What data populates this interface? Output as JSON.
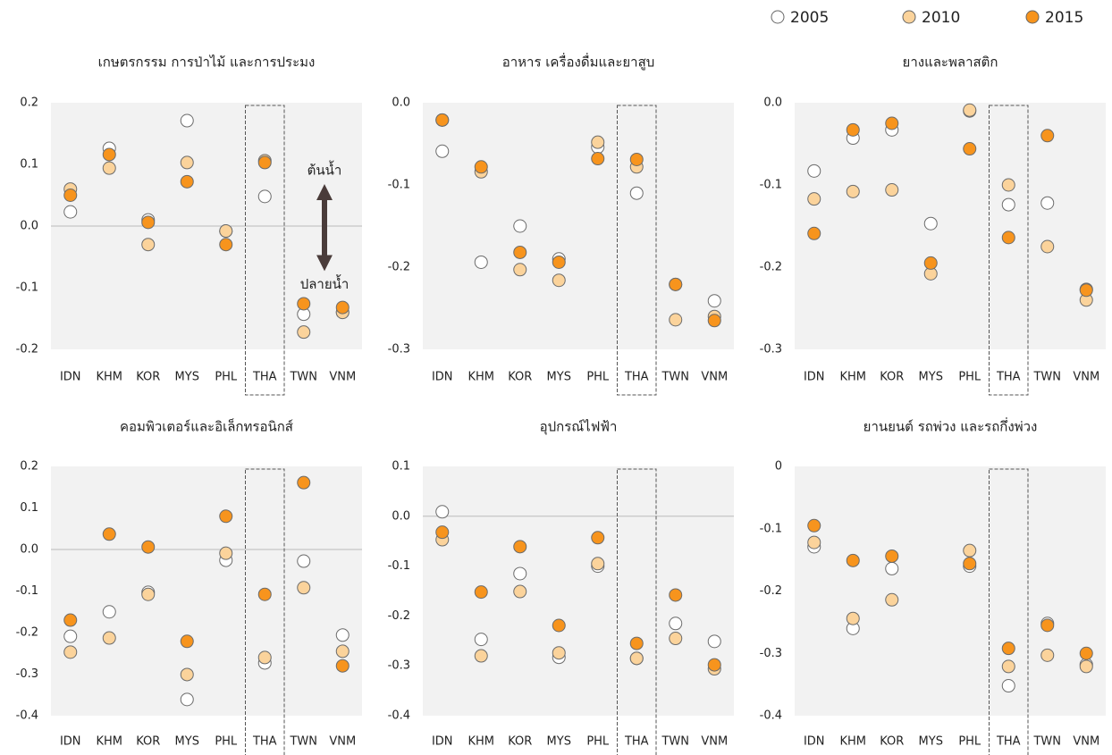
{
  "chart_data": [
    {
      "type": "dot",
      "title": "เกษตรกรรม การป่าไม้ และการประมง",
      "categories": [
        "IDN",
        "KHM",
        "KOR",
        "MYS",
        "PHL",
        "THA",
        "TWN",
        "VNM"
      ],
      "ylim": [
        -0.2,
        0.2
      ],
      "yticks": [
        -0.2,
        -0.1,
        {
          "value": 0,
          "label": "0.0"
        },
        0.1,
        0.2
      ],
      "highlight": "THA",
      "annotations": [
        "ต้นน้ำ",
        "ปลายน้ำ"
      ],
      "series": [
        {
          "name": "2005",
          "color": "#ffffff",
          "values": [
            0.023,
            0.126,
            0.01,
            0.171,
            -0.008,
            0.048,
            -0.143,
            -0.14
          ]
        },
        {
          "name": "2010",
          "color": "#fbd39b",
          "values": [
            0.06,
            0.094,
            -0.03,
            0.103,
            -0.008,
            0.106,
            -0.172,
            -0.14
          ]
        },
        {
          "name": "2015",
          "color": "#f7941d",
          "values": [
            0.05,
            0.116,
            0.006,
            0.072,
            -0.03,
            0.103,
            -0.126,
            -0.132
          ]
        }
      ]
    },
    {
      "type": "dot",
      "title": "อาหาร เครื่องดื่มและยาสูบ",
      "categories": [
        "IDN",
        "KHM",
        "KOR",
        "MYS",
        "PHL",
        "THA",
        "TWN",
        "VNM"
      ],
      "ylim": [
        -0.3,
        0
      ],
      "yticks": [
        -0.3,
        -0.2,
        -0.1,
        {
          "value": 0,
          "label": "0.0"
        }
      ],
      "highlight": "THA",
      "series": [
        {
          "name": "2005",
          "color": "#ffffff",
          "values": [
            -0.059,
            -0.194,
            -0.15,
            -0.19,
            -0.054,
            -0.11,
            -0.221,
            -0.241
          ]
        },
        {
          "name": "2010",
          "color": "#fbd39b",
          "values": [
            -0.021,
            -0.084,
            -0.203,
            -0.216,
            -0.048,
            -0.078,
            -0.264,
            -0.26
          ]
        },
        {
          "name": "2015",
          "color": "#f7941d",
          "values": [
            -0.021,
            -0.078,
            -0.182,
            -0.194,
            -0.068,
            -0.069,
            -0.221,
            -0.265
          ]
        }
      ]
    },
    {
      "type": "dot",
      "title": "ยางและพลาสติก",
      "categories": [
        "IDN",
        "KHM",
        "KOR",
        "MYS",
        "PHL",
        "THA",
        "TWN",
        "VNM"
      ],
      "ylim": [
        -0.3,
        0
      ],
      "yticks": [
        -0.3,
        -0.2,
        -0.1,
        {
          "value": 0,
          "label": "0.0"
        }
      ],
      "highlight": "THA",
      "series": [
        {
          "name": "2005",
          "color": "#ffffff",
          "values": [
            -0.083,
            -0.043,
            -0.033,
            -0.147,
            -0.01,
            -0.124,
            -0.122,
            -0.227
          ]
        },
        {
          "name": "2010",
          "color": "#fbd39b",
          "values": [
            -0.117,
            -0.108,
            -0.106,
            -0.208,
            -0.009,
            -0.1,
            -0.175,
            -0.24
          ]
        },
        {
          "name": "2015",
          "color": "#f7941d",
          "values": [
            -0.159,
            -0.033,
            -0.025,
            -0.195,
            -0.056,
            -0.164,
            -0.04,
            -0.228
          ]
        }
      ]
    },
    {
      "type": "dot",
      "title": "คอมพิวเตอร์และอิเล็กทรอนิกส์",
      "categories": [
        "IDN",
        "KHM",
        "KOR",
        "MYS",
        "PHL",
        "THA",
        "TWN",
        "VNM"
      ],
      "ylim": [
        -0.4,
        0.2
      ],
      "yticks": [
        -0.4,
        -0.3,
        -0.2,
        -0.1,
        {
          "value": 0,
          "label": "0.0"
        },
        0.1,
        0.2
      ],
      "highlight": "THA",
      "series": [
        {
          "name": "2005",
          "color": "#ffffff",
          "values": [
            -0.209,
            -0.15,
            -0.103,
            -0.361,
            -0.026,
            -0.273,
            -0.028,
            -0.206
          ]
        },
        {
          "name": "2010",
          "color": "#fbd39b",
          "values": [
            -0.247,
            -0.213,
            -0.108,
            -0.301,
            -0.009,
            -0.26,
            -0.092,
            -0.245
          ]
        },
        {
          "name": "2015",
          "color": "#f7941d",
          "values": [
            -0.17,
            0.037,
            0.006,
            -0.221,
            0.08,
            -0.108,
            0.161,
            -0.28
          ]
        }
      ]
    },
    {
      "type": "dot",
      "title": "อุปกรณ์ไฟฟ้า",
      "categories": [
        "IDN",
        "KHM",
        "KOR",
        "MYS",
        "PHL",
        "THA",
        "TWN",
        "VNM"
      ],
      "ylim": [
        -0.4,
        0.1
      ],
      "yticks": [
        -0.4,
        -0.3,
        -0.2,
        -0.1,
        {
          "value": 0,
          "label": "0.0"
        },
        0.1
      ],
      "highlight": "THA",
      "series": [
        {
          "name": "2005",
          "color": "#ffffff",
          "values": [
            0.009,
            -0.247,
            -0.115,
            -0.283,
            -0.1,
            -0.285,
            -0.215,
            -0.251
          ]
        },
        {
          "name": "2010",
          "color": "#fbd39b",
          "values": [
            -0.047,
            -0.28,
            -0.151,
            -0.274,
            -0.095,
            -0.285,
            -0.245,
            -0.306
          ]
        },
        {
          "name": "2015",
          "color": "#f7941d",
          "values": [
            -0.032,
            -0.152,
            -0.061,
            -0.219,
            -0.043,
            -0.255,
            -0.158,
            -0.298
          ]
        }
      ]
    },
    {
      "type": "dot",
      "title": "ยานยนต์ รถพ่วง และรถกึ่งพ่วง",
      "categories": [
        "IDN",
        "KHM",
        "KOR",
        "MYS",
        "PHL",
        "THA",
        "TWN",
        "VNM"
      ],
      "ylim": [
        -0.4,
        0
      ],
      "yticks": [
        -0.4,
        -0.3,
        -0.2,
        -0.1,
        0
      ],
      "highlight": "THA",
      "series": [
        {
          "name": "2005",
          "color": "#ffffff",
          "values": [
            -0.129,
            -0.26,
            -0.164,
            null,
            -0.16,
            -0.352,
            -0.252,
            -0.318
          ]
        },
        {
          "name": "2010",
          "color": "#fbd39b",
          "values": [
            -0.122,
            -0.244,
            -0.214,
            null,
            -0.135,
            -0.321,
            -0.303,
            -0.321
          ]
        },
        {
          "name": "2015",
          "color": "#f7941d",
          "values": [
            -0.095,
            -0.151,
            -0.144,
            null,
            -0.156,
            -0.292,
            -0.255,
            -0.3
          ]
        }
      ]
    }
  ]
}
